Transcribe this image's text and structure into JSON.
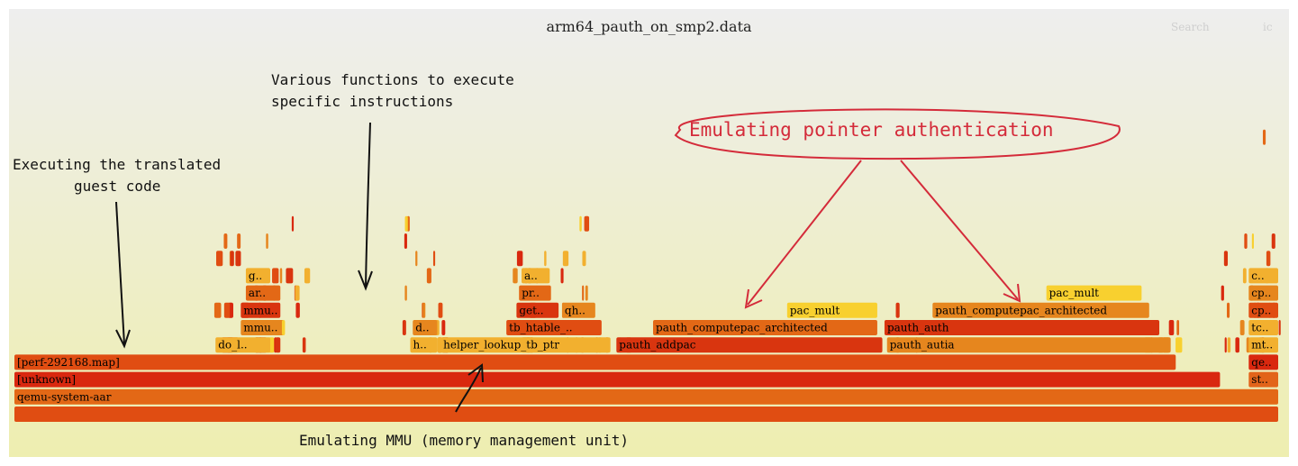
{
  "chart_data": {
    "type": "flamegraph",
    "title": "arm64_pauth_on_smp2.data",
    "frames": [
      {
        "label": "",
        "depth": 0,
        "start": 0.0,
        "width": 100.0,
        "color": "#e04d12"
      },
      {
        "label": "qemu-system-aar",
        "depth": 1,
        "start": 0.0,
        "width": 100.0,
        "color": "#e36816"
      },
      {
        "label": "[unknown]",
        "depth": 2,
        "start": 0.0,
        "width": 95.4,
        "color": "#d9280f"
      },
      {
        "label": "st..",
        "depth": 2,
        "start": 97.6,
        "width": 2.4,
        "color": "#e2641a"
      },
      {
        "label": "[perf-292168.map]",
        "depth": 3,
        "start": 0.0,
        "width": 91.9,
        "color": "#e04d12"
      },
      {
        "label": "qe..",
        "depth": 3,
        "start": 97.6,
        "width": 2.4,
        "color": "#d9280f"
      },
      {
        "label": "do_l..",
        "depth": 4,
        "start": 15.9,
        "width": 4.4,
        "color": "#f2b02f"
      },
      {
        "label": "h..",
        "depth": 4,
        "start": 31.3,
        "width": 2.2,
        "color": "#f2b02f"
      },
      {
        "label": "helper_lookup_tb_ptr",
        "depth": 4,
        "start": 33.7,
        "width": 13.5,
        "color": "#f2b02f"
      },
      {
        "label": "pauth_addpac",
        "depth": 4,
        "start": 47.6,
        "width": 21.1,
        "color": "#d9350f"
      },
      {
        "label": "pauth_autia",
        "depth": 4,
        "start": 69.0,
        "width": 22.5,
        "color": "#e6861e"
      },
      {
        "label": "mt..",
        "depth": 4,
        "start": 97.6,
        "width": 2.4,
        "color": "#f2b02f"
      },
      {
        "label": "mmu..",
        "depth": 5,
        "start": 17.9,
        "width": 3.2,
        "color": "#e6861e"
      },
      {
        "label": "d..",
        "depth": 5,
        "start": 31.5,
        "width": 2.0,
        "color": "#e6861e"
      },
      {
        "label": "tb_htable_..",
        "depth": 5,
        "start": 38.9,
        "width": 7.6,
        "color": "#e04d12"
      },
      {
        "label": "pauth_computepac_architected",
        "depth": 5,
        "start": 50.5,
        "width": 17.8,
        "color": "#e36816"
      },
      {
        "label": "pauth_auth",
        "depth": 5,
        "start": 68.8,
        "width": 21.8,
        "color": "#d9350f"
      },
      {
        "label": "tc..",
        "depth": 5,
        "start": 97.6,
        "width": 2.4,
        "color": "#f2b02f"
      },
      {
        "label": "mmu..",
        "depth": 6,
        "start": 17.9,
        "width": 3.2,
        "color": "#d9350f"
      },
      {
        "label": "get..",
        "depth": 6,
        "start": 39.7,
        "width": 3.4,
        "color": "#d9350f"
      },
      {
        "label": "qh..",
        "depth": 6,
        "start": 43.3,
        "width": 2.7,
        "color": "#e6861e"
      },
      {
        "label": "pac_mult",
        "depth": 6,
        "start": 61.1,
        "width": 7.2,
        "color": "#f8d02f"
      },
      {
        "label": "pauth_computepac_architected",
        "depth": 6,
        "start": 72.6,
        "width": 17.2,
        "color": "#e6861e"
      },
      {
        "label": "cp..",
        "depth": 6,
        "start": 97.6,
        "width": 2.4,
        "color": "#e04d12"
      },
      {
        "label": "ar..",
        "depth": 7,
        "start": 18.3,
        "width": 2.8,
        "color": "#e36816"
      },
      {
        "label": "pr..",
        "depth": 7,
        "start": 39.9,
        "width": 2.6,
        "color": "#e36816"
      },
      {
        "label": "pac_mult",
        "depth": 7,
        "start": 81.6,
        "width": 7.6,
        "color": "#f8d02f"
      },
      {
        "label": "cp..",
        "depth": 7,
        "start": 97.6,
        "width": 2.4,
        "color": "#e6861e"
      },
      {
        "label": "g..",
        "depth": 8,
        "start": 18.3,
        "width": 2.0,
        "color": "#f2b02f"
      },
      {
        "label": "a..",
        "depth": 8,
        "start": 40.1,
        "width": 2.3,
        "color": "#f2b02f"
      },
      {
        "label": "c..",
        "depth": 8,
        "start": 97.6,
        "width": 2.4,
        "color": "#f2b02f"
      }
    ]
  },
  "search": {
    "label": "Search"
  },
  "ic": {
    "label": "ic"
  },
  "annotations": {
    "guest_code": [
      "Executing the translated",
      "guest code"
    ],
    "functions": [
      "Various functions to execute",
      "specific instructions"
    ],
    "pointer_auth": "Emulating pointer authentication",
    "mmu": "Emulating MMU (memory management unit)"
  }
}
